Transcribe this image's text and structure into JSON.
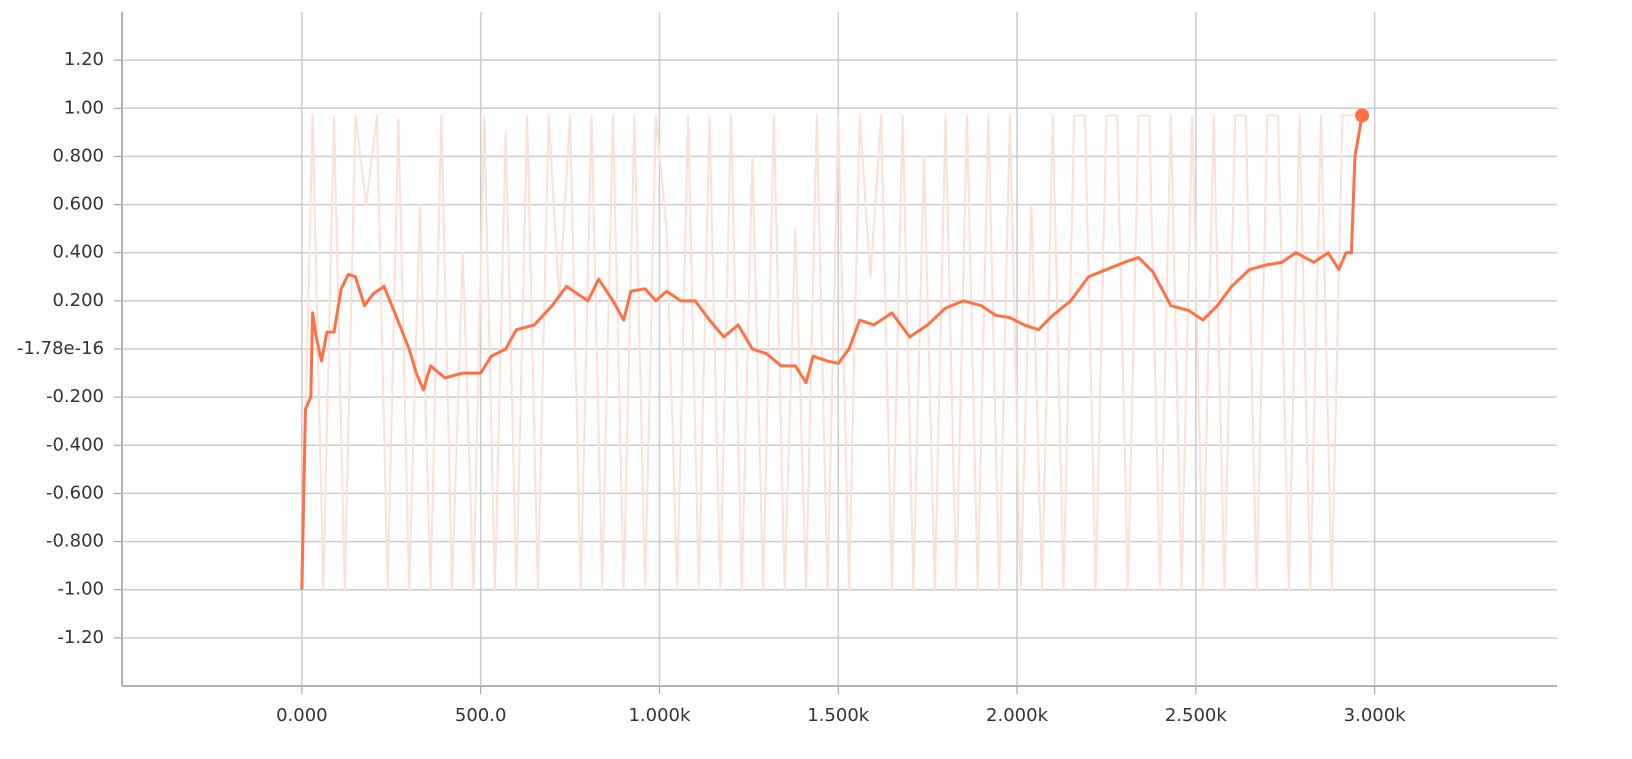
{
  "chart_data": {
    "type": "line",
    "xlim": [
      -503,
      3510
    ],
    "ylim": [
      -1.4,
      1.4
    ],
    "grid": true,
    "xticks": [
      {
        "value": 0,
        "label": "0.000"
      },
      {
        "value": 500,
        "label": "500.0"
      },
      {
        "value": 1000,
        "label": "1.000k"
      },
      {
        "value": 1500,
        "label": "1.500k"
      },
      {
        "value": 2000,
        "label": "2.000k"
      },
      {
        "value": 2500,
        "label": "2.500k"
      },
      {
        "value": 3000,
        "label": "3.000k"
      }
    ],
    "yticks": [
      {
        "value": 1.2,
        "label": "1.20"
      },
      {
        "value": 1,
        "label": "1.00"
      },
      {
        "value": 0.8,
        "label": "0.800"
      },
      {
        "value": 0.6,
        "label": "0.600"
      },
      {
        "value": 0.4,
        "label": "0.400"
      },
      {
        "value": 0.2,
        "label": "0.200"
      },
      {
        "value": -1.78e-16,
        "label": "-1.78e-16"
      },
      {
        "value": -0.2,
        "label": "-0.200"
      },
      {
        "value": -0.4,
        "label": "-0.400"
      },
      {
        "value": -0.6,
        "label": "-0.600"
      },
      {
        "value": -0.8,
        "label": "-0.800"
      },
      {
        "value": -1,
        "label": "-1.00"
      },
      {
        "value": -1.2,
        "label": "-1.20"
      }
    ],
    "series": [
      {
        "color": "#fde0d5",
        "width": 2,
        "x": [
          0,
          30,
          60,
          90,
          120,
          150,
          180,
          210,
          240,
          270,
          300,
          330,
          360,
          390,
          420,
          450,
          480,
          510,
          540,
          570,
          600,
          630,
          660,
          690,
          720,
          750,
          780,
          810,
          840,
          870,
          900,
          930,
          960,
          990,
          1020,
          1050,
          1080,
          1110,
          1140,
          1170,
          1200,
          1230,
          1260,
          1290,
          1320,
          1350,
          1380,
          1410,
          1440,
          1470,
          1500,
          1530,
          1560,
          1590,
          1620,
          1650,
          1680,
          1710,
          1740,
          1770,
          1800,
          1830,
          1860,
          1890,
          1920,
          1950,
          1980,
          2010,
          2040,
          2070,
          2100,
          2130,
          2160,
          2190,
          2220,
          2250,
          2280,
          2310,
          2340,
          2370,
          2400,
          2430,
          2460,
          2490,
          2520,
          2550,
          2580,
          2610,
          2640,
          2670,
          2700,
          2730,
          2760,
          2790,
          2820,
          2850,
          2880,
          2910,
          2940,
          2965
        ],
        "values": [
          -1.0,
          0.97,
          -1.0,
          0.96,
          -1.0,
          0.97,
          0.6,
          0.97,
          -1.0,
          0.96,
          -1.0,
          0.6,
          -1.0,
          0.97,
          -1.0,
          0.4,
          -1.0,
          0.97,
          -1.0,
          0.9,
          -1.0,
          0.97,
          -1.0,
          0.97,
          0.2,
          0.97,
          -1.0,
          0.97,
          -1.0,
          0.97,
          -1.0,
          0.97,
          -1.0,
          0.97,
          0.5,
          -1.0,
          0.97,
          -1.0,
          0.96,
          -1.0,
          0.97,
          -1.0,
          0.8,
          -1.0,
          0.97,
          -1.0,
          0.5,
          -1.0,
          0.97,
          -1.0,
          0.97,
          -1.0,
          0.97,
          0.3,
          0.97,
          -1.0,
          0.97,
          -1.0,
          0.8,
          -1.0,
          0.97,
          -1.0,
          0.97,
          -1.0,
          0.97,
          -1.0,
          0.97,
          -1.0,
          0.6,
          -1.0,
          0.97,
          -1.0,
          0.97,
          0.97,
          -1.0,
          0.97,
          0.97,
          -1.0,
          0.97,
          0.97,
          -1.0,
          0.97,
          -1.0,
          0.97,
          -1.0,
          0.97,
          -1.0,
          0.97,
          0.97,
          -1.0,
          0.97,
          0.97,
          -1.0,
          0.97,
          -1.0,
          0.97,
          -1.0,
          0.97,
          0.97,
          0.97
        ]
      },
      {
        "color": "#ff7043",
        "width": 3,
        "x": [
          0,
          10,
          25,
          30,
          40,
          55,
          70,
          90,
          110,
          130,
          150,
          175,
          200,
          230,
          260,
          300,
          320,
          340,
          360,
          400,
          450,
          500,
          530,
          570,
          600,
          650,
          700,
          740,
          800,
          830,
          870,
          900,
          920,
          960,
          990,
          1020,
          1060,
          1100,
          1140,
          1180,
          1220,
          1260,
          1300,
          1340,
          1380,
          1410,
          1430,
          1470,
          1500,
          1530,
          1560,
          1600,
          1650,
          1700,
          1750,
          1800,
          1850,
          1900,
          1940,
          1980,
          2020,
          2060,
          2100,
          2150,
          2200,
          2250,
          2300,
          2340,
          2380,
          2430,
          2480,
          2520,
          2560,
          2600,
          2650,
          2700,
          2740,
          2780,
          2830,
          2870,
          2900,
          2920,
          2935,
          2945,
          2965
        ],
        "values": [
          -1.0,
          -0.25,
          -0.2,
          0.15,
          0.05,
          -0.05,
          0.07,
          0.07,
          0.25,
          0.31,
          0.3,
          0.18,
          0.23,
          0.26,
          0.15,
          0.0,
          -0.1,
          -0.17,
          -0.07,
          -0.12,
          -0.1,
          -0.1,
          -0.03,
          0.0,
          0.08,
          0.1,
          0.18,
          0.26,
          0.2,
          0.29,
          0.2,
          0.12,
          0.24,
          0.25,
          0.2,
          0.24,
          0.2,
          0.2,
          0.12,
          0.05,
          0.1,
          0.0,
          -0.02,
          -0.07,
          -0.07,
          -0.14,
          -0.03,
          -0.05,
          -0.06,
          0.0,
          0.12,
          0.1,
          0.15,
          0.05,
          0.1,
          0.17,
          0.2,
          0.18,
          0.14,
          0.13,
          0.1,
          0.08,
          0.14,
          0.2,
          0.3,
          0.33,
          0.36,
          0.38,
          0.32,
          0.18,
          0.16,
          0.12,
          0.18,
          0.26,
          0.33,
          0.35,
          0.36,
          0.4,
          0.36,
          0.4,
          0.33,
          0.4,
          0.4,
          0.8,
          0.97
        ]
      }
    ]
  }
}
